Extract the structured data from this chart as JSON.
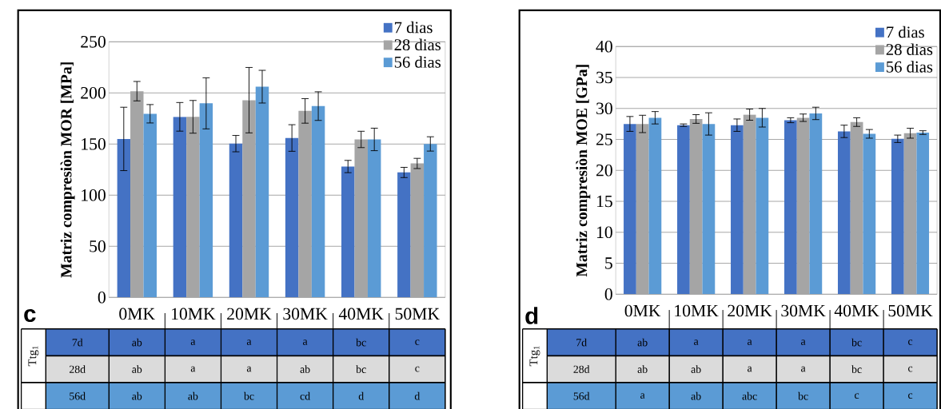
{
  "chart_data": [
    {
      "type": "bar",
      "ylabel": "Matriz compresiòn MOR [MPa]",
      "categories": [
        "0MK",
        "10MK",
        "20MK",
        "30MK",
        "40MK",
        "50MK"
      ],
      "series": [
        {
          "name": "7 dias",
          "color": "#4472c4",
          "values": [
            155,
            176.6,
            150.4,
            155.9,
            128,
            122.2
          ],
          "errors": [
            31,
            14,
            8,
            13,
            6,
            5
          ]
        },
        {
          "name": "28 dias",
          "color": "#a5a5a5",
          "values": [
            201.7,
            176.6,
            192.9,
            182.4,
            154.5,
            131
          ],
          "errors": [
            9.5,
            16,
            32,
            12,
            8,
            5
          ]
        },
        {
          "name": "56 dias",
          "color": "#5b9bd5",
          "values": [
            179.6,
            189.8,
            206.1,
            187.1,
            154.5,
            150.1
          ],
          "errors": [
            9,
            25,
            16,
            14,
            11,
            7
          ]
        }
      ],
      "ylim": [
        0,
        250
      ],
      "yticks": [
        0,
        50,
        100,
        150,
        200,
        250
      ],
      "grid": "y",
      "legend": "top right",
      "annotations": [
        "c",
        "Ttg$_{1}$",
        "7d",
        "ab",
        "a",
        "a",
        "a",
        "bc",
        "c",
        "28d",
        "ab",
        "a",
        "a",
        "ab",
        "bc",
        "c",
        "56d",
        "ab",
        "ab",
        "bc",
        "cd",
        "d",
        "d"
      ]
    },
    {
      "type": "bar",
      "ylabel": "Matriz compresiòn MOE [GPa]",
      "categories": [
        "0MK",
        "10MK",
        "20MK",
        "30MK",
        "40MK",
        "50MK"
      ],
      "series": [
        {
          "name": "7 dias",
          "color": "#4472c4",
          "values": [
            27.5,
            27.3,
            27.3,
            28.1,
            26.3,
            25.1
          ],
          "errors": [
            1.2,
            0.2,
            1,
            0.4,
            1,
            0.6
          ]
        },
        {
          "name": "28 dias",
          "color": "#a5a5a5",
          "values": [
            27.5,
            28.3,
            29,
            28.5,
            27.8,
            26
          ],
          "errors": [
            1.4,
            0.7,
            0.9,
            0.6,
            0.7,
            0.8
          ]
        },
        {
          "name": "56 dias",
          "color": "#5b9bd5",
          "values": [
            28.5,
            27.5,
            28.5,
            29.2,
            25.9,
            26.1
          ],
          "errors": [
            1,
            1.8,
            1.5,
            1,
            0.7,
            0.3
          ]
        }
      ],
      "ylim": [
        0,
        40
      ],
      "yticks": [
        0,
        5,
        10,
        15,
        20,
        25,
        30,
        35,
        40
      ],
      "grid": "y",
      "legend": "top right",
      "annotations": [
        "d",
        "Ttg$_{1}$",
        "7d",
        "ab",
        "a",
        "a",
        "a",
        "bc",
        "c",
        "28d",
        "ab",
        "ab",
        "a",
        "a",
        "bc",
        "c",
        "56d",
        "a",
        "ab",
        "abc",
        "bc",
        "c",
        "c"
      ]
    }
  ]
}
